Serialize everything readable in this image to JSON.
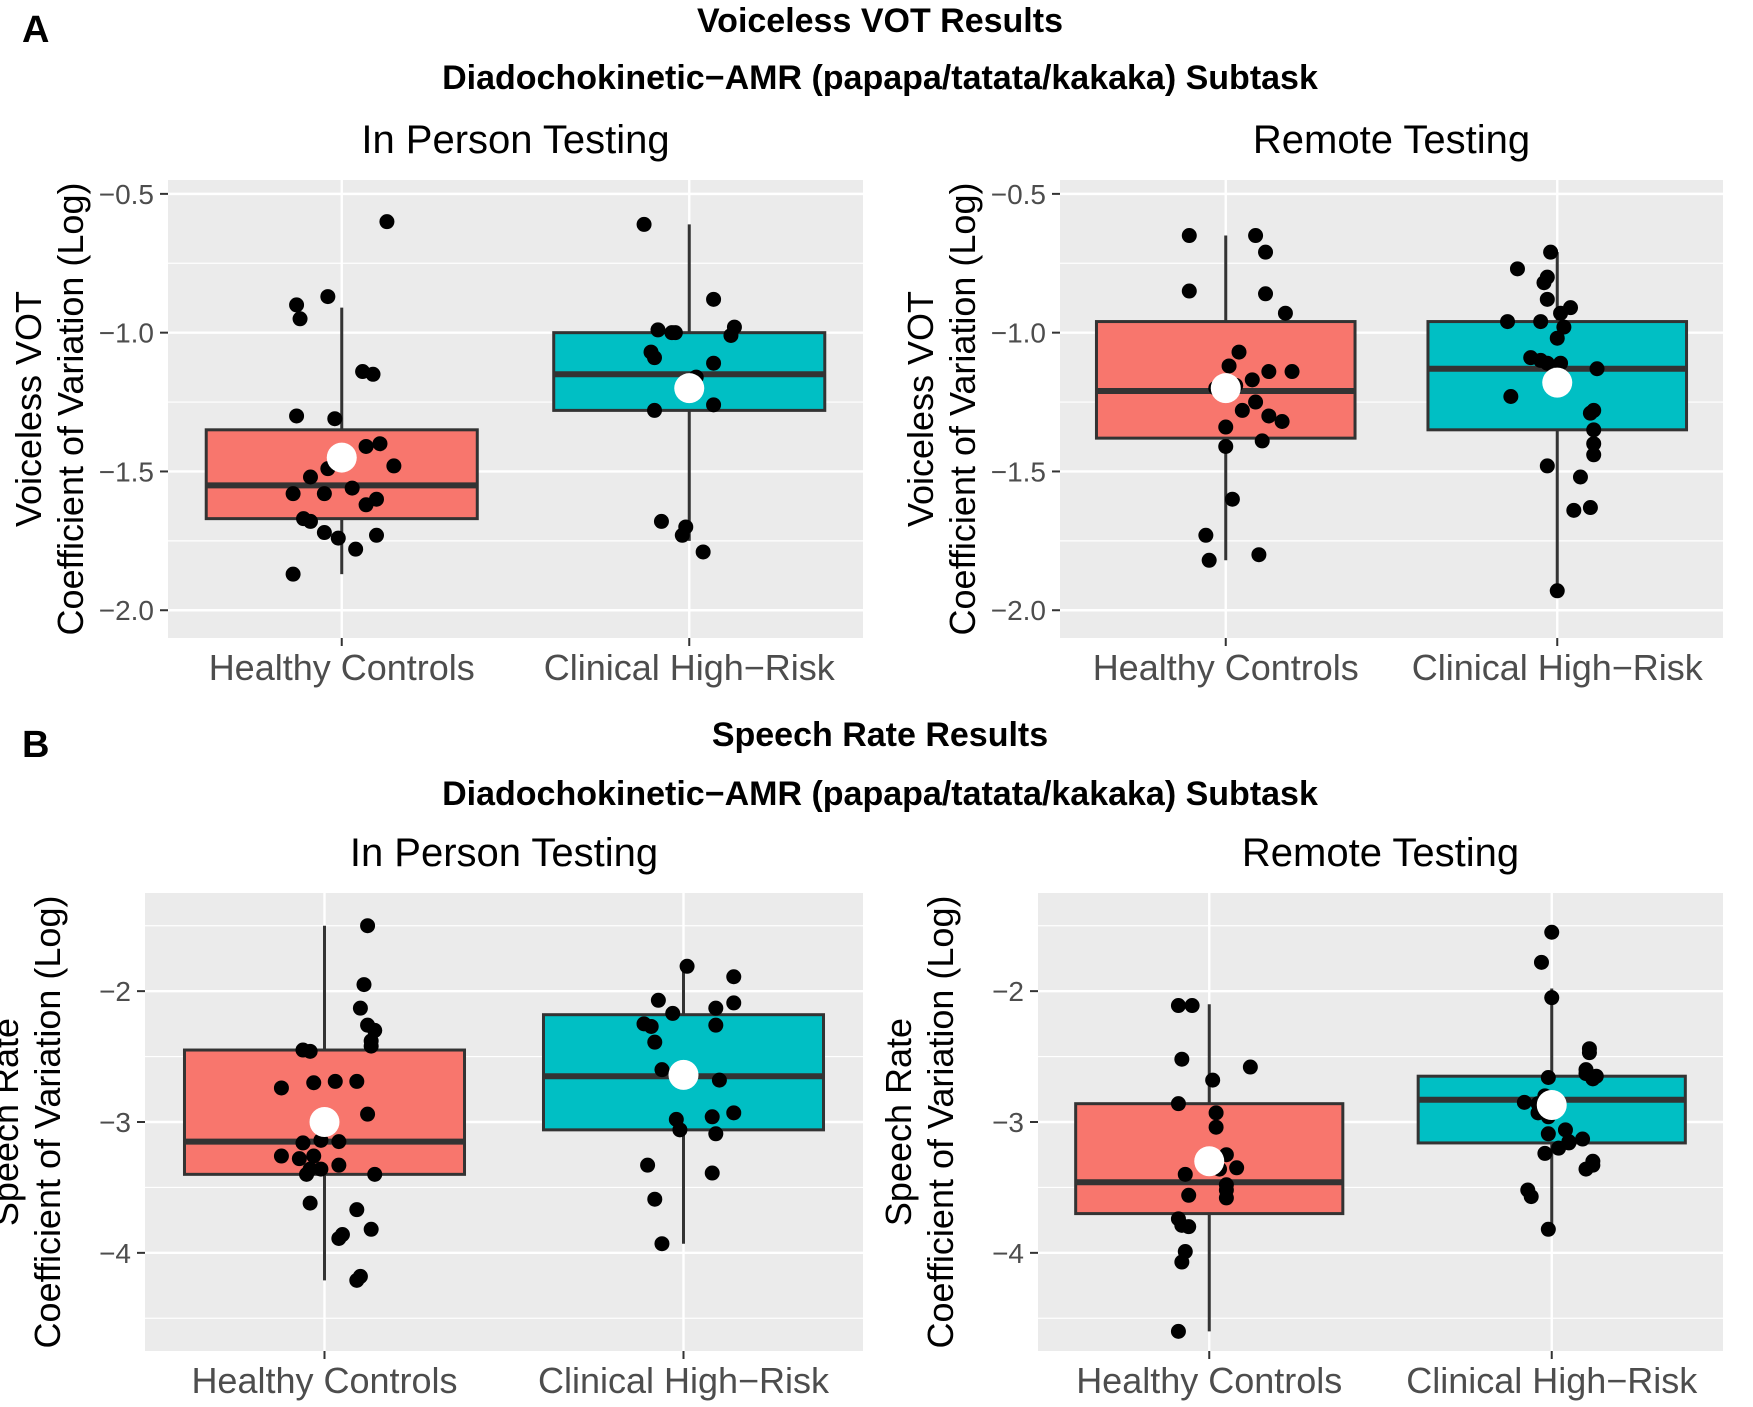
{
  "panels": [
    {
      "letter": "A",
      "title": "Voiceless VOT Results",
      "subtitle": "Diadochokinetic−AMR (papapa/tatata/kakaka) Subtask"
    },
    {
      "letter": "B",
      "title": "Speech Rate Results",
      "subtitle": "Diadochokinetic−AMR (papapa/tatata/kakaka) Subtask"
    }
  ],
  "chart_data": [
    {
      "type": "box",
      "panel": "A",
      "title": "In Person Testing",
      "ylabel_line1": "Voiceless VOT",
      "ylabel_line2": "Coefficient of Variation (Log)",
      "ylim": [
        -2.1,
        -0.45
      ],
      "yticks": [
        -2.0,
        -1.5,
        -1.0,
        -0.5
      ],
      "ytick_labels": [
        "−2.0",
        "−1.5",
        "−1.0",
        "−0.5"
      ],
      "categories": [
        "Healthy Controls",
        "Clinical High−Risk"
      ],
      "colors": [
        "#f8766d",
        "#00bfc4"
      ],
      "boxes": [
        {
          "whisker_low": -1.87,
          "q1": -1.67,
          "median": -1.55,
          "q3": -1.35,
          "whisker_high": -0.91,
          "mean": -1.45
        },
        {
          "whisker_low": -1.75,
          "q1": -1.28,
          "median": -1.15,
          "q3": -1.0,
          "whisker_high": -0.61,
          "mean": -1.2
        }
      ],
      "points": [
        [
          [
            -0.14,
            -1.87
          ],
          [
            -0.13,
            -0.9
          ],
          [
            -0.12,
            -0.95
          ],
          [
            -0.04,
            -0.87
          ],
          [
            0.13,
            -0.6
          ],
          [
            0.06,
            -1.14
          ],
          [
            0.09,
            -1.15
          ],
          [
            -0.13,
            -1.3
          ],
          [
            -0.02,
            -1.31
          ],
          [
            0.07,
            -1.41
          ],
          [
            0.11,
            -1.4
          ],
          [
            0.15,
            -1.48
          ],
          [
            -0.09,
            -1.52
          ],
          [
            -0.04,
            -1.49
          ],
          [
            0.03,
            -1.56
          ],
          [
            0.07,
            -1.62
          ],
          [
            0.1,
            -1.6
          ],
          [
            -0.14,
            -1.58
          ],
          [
            -0.05,
            -1.58
          ],
          [
            -0.11,
            -1.67
          ],
          [
            -0.09,
            -1.68
          ],
          [
            -0.05,
            -1.72
          ],
          [
            -0.01,
            -1.74
          ],
          [
            0.04,
            -1.78
          ],
          [
            0.1,
            -1.73
          ]
        ],
        [
          [
            -0.13,
            -0.61
          ],
          [
            0.07,
            -0.88
          ],
          [
            -0.09,
            -0.99
          ],
          [
            -0.05,
            -1.0
          ],
          [
            -0.04,
            -1.0
          ],
          [
            0.13,
            -0.98
          ],
          [
            0.12,
            -1.01
          ],
          [
            -0.11,
            -1.07
          ],
          [
            -0.1,
            -1.09
          ],
          [
            0.07,
            -1.11
          ],
          [
            0.02,
            -1.16
          ],
          [
            -0.1,
            -1.28
          ],
          [
            0.07,
            -1.26
          ],
          [
            -0.08,
            -1.68
          ],
          [
            -0.01,
            -1.7
          ],
          [
            -0.02,
            -1.73
          ],
          [
            0.04,
            -1.79
          ]
        ]
      ]
    },
    {
      "type": "box",
      "panel": "A",
      "title": "Remote Testing",
      "ylabel_line1": "Voiceless VOT",
      "ylabel_line2": "Coefficient of Variation (Log)",
      "ylim": [
        -2.1,
        -0.45
      ],
      "yticks": [
        -2.0,
        -1.5,
        -1.0,
        -0.5
      ],
      "ytick_labels": [
        "−2.0",
        "−1.5",
        "−1.0",
        "−0.5"
      ],
      "categories": [
        "Healthy Controls",
        "Clinical High−Risk"
      ],
      "colors": [
        "#f8766d",
        "#00bfc4"
      ],
      "boxes": [
        {
          "whisker_low": -1.82,
          "q1": -1.38,
          "median": -1.21,
          "q3": -0.96,
          "whisker_high": -0.65,
          "mean": -1.2
        },
        {
          "whisker_low": -1.93,
          "q1": -1.35,
          "median": -1.13,
          "q3": -0.96,
          "whisker_high": -0.71,
          "mean": -1.18
        }
      ],
      "points": [
        [
          [
            -0.11,
            -0.65
          ],
          [
            0.09,
            -0.65
          ],
          [
            0.12,
            -0.71
          ],
          [
            -0.11,
            -0.85
          ],
          [
            0.12,
            -0.86
          ],
          [
            0.18,
            -0.93
          ],
          [
            0.04,
            -1.07
          ],
          [
            0.01,
            -1.12
          ],
          [
            0.13,
            -1.14
          ],
          [
            0.2,
            -1.14
          ],
          [
            0.08,
            -1.17
          ],
          [
            0.03,
            -1.19
          ],
          [
            -0.03,
            -1.2
          ],
          [
            0.09,
            -1.25
          ],
          [
            0.05,
            -1.28
          ],
          [
            0.13,
            -1.3
          ],
          [
            0.17,
            -1.32
          ],
          [
            0.0,
            -1.34
          ],
          [
            0.11,
            -1.39
          ],
          [
            0.0,
            -1.41
          ],
          [
            0.02,
            -1.6
          ],
          [
            -0.06,
            -1.73
          ],
          [
            0.1,
            -1.8
          ],
          [
            -0.05,
            -1.82
          ]
        ],
        [
          [
            -0.02,
            -0.71
          ],
          [
            -0.12,
            -0.77
          ],
          [
            -0.03,
            -0.8
          ],
          [
            -0.04,
            -0.82
          ],
          [
            -0.03,
            -0.88
          ],
          [
            0.01,
            -0.93
          ],
          [
            0.04,
            -0.91
          ],
          [
            -0.05,
            -0.96
          ],
          [
            0.02,
            -0.98
          ],
          [
            -0.15,
            -0.96
          ],
          [
            0.0,
            -1.02
          ],
          [
            -0.08,
            -1.09
          ],
          [
            -0.05,
            -1.1
          ],
          [
            -0.03,
            -1.11
          ],
          [
            0.01,
            -1.11
          ],
          [
            0.12,
            -1.13
          ],
          [
            0.11,
            -1.28
          ],
          [
            0.1,
            -1.29
          ],
          [
            -0.14,
            -1.23
          ],
          [
            0.11,
            -1.35
          ],
          [
            0.11,
            -1.4
          ],
          [
            0.11,
            -1.44
          ],
          [
            -0.03,
            -1.48
          ],
          [
            0.07,
            -1.52
          ],
          [
            0.1,
            -1.63
          ],
          [
            0.05,
            -1.64
          ],
          [
            0.0,
            -1.93
          ]
        ]
      ]
    },
    {
      "type": "box",
      "panel": "B",
      "title": "In Person Testing",
      "ylabel_line1": "Speech Rate",
      "ylabel_line2": "Coefficient of Variation (Log)",
      "ylim": [
        -4.75,
        -1.25
      ],
      "yticks": [
        -4,
        -3,
        -2
      ],
      "ytick_labels": [
        "−4",
        "−3",
        "−2"
      ],
      "categories": [
        "Healthy Controls",
        "Clinical High−Risk"
      ],
      "colors": [
        "#f8766d",
        "#00bfc4"
      ],
      "boxes": [
        {
          "whisker_low": -4.21,
          "q1": -3.4,
          "median": -3.15,
          "q3": -2.45,
          "whisker_high": -1.5,
          "mean": -3.0
        },
        {
          "whisker_low": -3.93,
          "q1": -3.06,
          "median": -2.65,
          "q3": -2.18,
          "whisker_high": -1.81,
          "mean": -2.64
        }
      ],
      "points": [
        [
          [
            0.12,
            -1.5
          ],
          [
            0.11,
            -1.95
          ],
          [
            0.1,
            -2.13
          ],
          [
            0.12,
            -2.26
          ],
          [
            0.14,
            -2.3
          ],
          [
            0.13,
            -2.38
          ],
          [
            0.13,
            -2.42
          ],
          [
            -0.06,
            -2.45
          ],
          [
            -0.04,
            -2.46
          ],
          [
            -0.12,
            -2.74
          ],
          [
            -0.03,
            -2.7
          ],
          [
            0.03,
            -2.69
          ],
          [
            0.09,
            -2.69
          ],
          [
            0.12,
            -2.94
          ],
          [
            -0.12,
            -3.26
          ],
          [
            -0.06,
            -3.16
          ],
          [
            -0.01,
            -3.14
          ],
          [
            0.04,
            -3.15
          ],
          [
            -0.07,
            -3.28
          ],
          [
            -0.03,
            -3.26
          ],
          [
            0.04,
            -3.33
          ],
          [
            -0.04,
            -3.36
          ],
          [
            -0.01,
            -3.36
          ],
          [
            -0.05,
            -3.4
          ],
          [
            0.14,
            -3.4
          ],
          [
            -0.04,
            -3.62
          ],
          [
            0.09,
            -3.67
          ],
          [
            0.13,
            -3.82
          ],
          [
            0.04,
            -3.89
          ],
          [
            0.05,
            -3.86
          ],
          [
            0.1,
            -4.18
          ],
          [
            0.09,
            -4.21
          ]
        ],
        [
          [
            0.01,
            -1.81
          ],
          [
            0.14,
            -1.89
          ],
          [
            -0.07,
            -2.07
          ],
          [
            0.14,
            -2.09
          ],
          [
            0.09,
            -2.13
          ],
          [
            -0.11,
            -2.25
          ],
          [
            -0.09,
            -2.27
          ],
          [
            -0.03,
            -2.17
          ],
          [
            0.09,
            -2.26
          ],
          [
            -0.08,
            -2.39
          ],
          [
            -0.06,
            -2.6
          ],
          [
            0.1,
            -2.68
          ],
          [
            0.14,
            -2.93
          ],
          [
            -0.02,
            -2.98
          ],
          [
            0.08,
            -2.96
          ],
          [
            -0.01,
            -3.06
          ],
          [
            0.09,
            -3.09
          ],
          [
            -0.1,
            -3.33
          ],
          [
            0.08,
            -3.39
          ],
          [
            -0.08,
            -3.59
          ],
          [
            -0.06,
            -3.93
          ]
        ]
      ]
    },
    {
      "type": "box",
      "panel": "B",
      "title": "Remote Testing",
      "ylabel_line1": "Speech Rate",
      "ylabel_line2": "Coefficient of Variation (Log)",
      "ylim": [
        -4.75,
        -1.25
      ],
      "yticks": [
        -4,
        -3,
        -2
      ],
      "ytick_labels": [
        "−4",
        "−3",
        "−2"
      ],
      "categories": [
        "Healthy Controls",
        "Clinical High−Risk"
      ],
      "colors": [
        "#f8766d",
        "#00bfc4"
      ],
      "boxes": [
        {
          "whisker_low": -4.6,
          "q1": -3.7,
          "median": -3.46,
          "q3": -2.86,
          "whisker_high": -2.1,
          "mean": -3.3
        },
        {
          "whisker_low": -3.82,
          "q1": -3.16,
          "median": -2.83,
          "q3": -2.65,
          "whisker_high": -1.98,
          "mean": -2.87
        }
      ],
      "points": [
        [
          [
            -0.09,
            -2.11
          ],
          [
            -0.05,
            -2.11
          ],
          [
            -0.08,
            -2.52
          ],
          [
            0.12,
            -2.58
          ],
          [
            0.01,
            -2.68
          ],
          [
            -0.09,
            -2.86
          ],
          [
            0.02,
            -2.93
          ],
          [
            0.02,
            -3.04
          ],
          [
            0.05,
            -3.25
          ],
          [
            0.08,
            -3.35
          ],
          [
            0.03,
            -3.36
          ],
          [
            -0.07,
            -3.4
          ],
          [
            0.05,
            -3.48
          ],
          [
            0.05,
            -3.52
          ],
          [
            0.05,
            -3.58
          ],
          [
            -0.06,
            -3.56
          ],
          [
            -0.09,
            -3.74
          ],
          [
            -0.08,
            -3.79
          ],
          [
            -0.06,
            -3.8
          ],
          [
            -0.07,
            -3.99
          ],
          [
            -0.08,
            -4.07
          ],
          [
            -0.09,
            -4.6
          ]
        ],
        [
          [
            0.0,
            -1.55
          ],
          [
            -0.03,
            -1.78
          ],
          [
            0.0,
            -2.05
          ],
          [
            0.11,
            -2.44
          ],
          [
            0.11,
            -2.47
          ],
          [
            0.1,
            -2.6
          ],
          [
            0.13,
            -2.65
          ],
          [
            0.12,
            -2.67
          ],
          [
            0.1,
            -2.63
          ],
          [
            -0.01,
            -2.66
          ],
          [
            -0.08,
            -2.85
          ],
          [
            -0.04,
            -2.86
          ],
          [
            -0.02,
            -2.8
          ],
          [
            0.0,
            -2.89
          ],
          [
            -0.04,
            -2.93
          ],
          [
            -0.01,
            -2.96
          ],
          [
            0.05,
            -3.15
          ],
          [
            0.02,
            -3.2
          ],
          [
            -0.02,
            -3.24
          ],
          [
            0.09,
            -3.13
          ],
          [
            0.05,
            -3.16
          ],
          [
            -0.01,
            -3.09
          ],
          [
            0.04,
            -3.06
          ],
          [
            0.12,
            -3.3
          ],
          [
            0.12,
            -3.33
          ],
          [
            0.1,
            -3.36
          ],
          [
            -0.07,
            -3.52
          ],
          [
            -0.06,
            -3.57
          ],
          [
            -0.01,
            -3.82
          ]
        ]
      ]
    }
  ]
}
